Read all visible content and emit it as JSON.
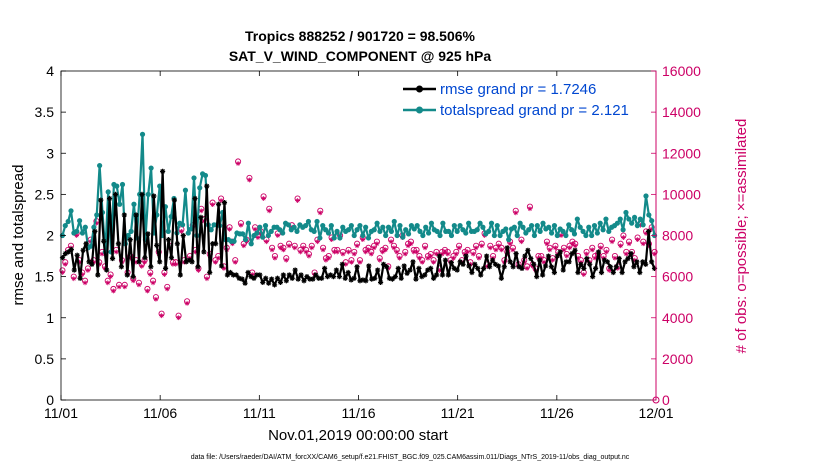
{
  "chart_data": {
    "type": "line",
    "title": "Tropics 888252 / 901720 = 98.506%",
    "subtitle": "SAT_V_WIND_COMPONENT @ 925 hPa",
    "xlabel": "Nov.01,2019 00:00:00 start",
    "ylabel_left": "rmse and totalspread",
    "ylabel_right": "# of obs: o=possible; ×=assimilated",
    "footer": "data file: /Users/raeder/DAI/ATM_forcXX/CAM6_setup/f.e21.FHIST_BGC.f09_025.CAM6assim.011/Diags_NTrS_2019-11/obs_diag_output.nc",
    "x_tick_labels": [
      "11/01",
      "11/06",
      "11/11",
      "11/16",
      "11/21",
      "11/26",
      "12/01"
    ],
    "x_tick_days": [
      0,
      5,
      10,
      15,
      20,
      25,
      30
    ],
    "xlim_days": [
      0,
      30
    ],
    "ylim_left": [
      0,
      4
    ],
    "y_ticks_left": [
      "0",
      "0.5",
      "1",
      "1.5",
      "2",
      "2.5",
      "3",
      "3.5",
      "4"
    ],
    "ylim_right": [
      0,
      16000
    ],
    "y_ticks_right": [
      "0",
      "2000",
      "4000",
      "6000",
      "8000",
      "10000",
      "12000",
      "14000",
      "16000"
    ],
    "legend": {
      "placement": "top-right",
      "entries": [
        "rmse grand pr = 1.7246",
        "totalspread grand pr = 2.121"
      ]
    },
    "colors": {
      "rmse": "#000000",
      "spread": "#138a8a",
      "obs": "#cc0066",
      "legend_text": "#0047d1",
      "right_axis": "#cc0066"
    },
    "series": [
      {
        "name": "rmse",
        "axis": "left",
        "values": [
          1.73,
          1.78,
          1.8,
          1.83,
          1.58,
          1.76,
          1.48,
          1.82,
          1.9,
          1.68,
          1.65,
          2.05,
          1.52,
          2.43,
          1.93,
          1.58,
          2.45,
          1.72,
          2.5,
          1.9,
          1.62,
          2.25,
          1.52,
          1.95,
          1.5,
          2.25,
          1.68,
          2.5,
          1.73,
          2.02,
          1.62,
          2.48,
          1.88,
          1.68,
          2.78,
          1.6,
          1.95,
          1.73,
          2.43,
          1.9,
          1.52,
          2.0,
          1.68,
          1.7,
          1.68,
          2.45,
          1.62,
          2.22,
          1.8,
          2.6,
          1.55,
          1.9,
          1.9,
          2.38,
          1.63,
          2.4,
          1.52,
          1.55,
          1.52,
          1.52,
          1.48,
          1.47,
          1.42,
          1.55,
          1.5,
          1.48,
          1.52,
          1.52,
          1.43,
          1.48,
          1.42,
          1.47,
          1.4,
          1.48,
          1.43,
          1.52,
          1.45,
          1.52,
          1.48,
          1.58,
          1.47,
          1.52,
          1.45,
          1.5,
          1.47,
          1.47,
          1.52,
          1.48,
          1.48,
          1.6,
          1.5,
          1.52,
          1.5,
          1.58,
          1.5,
          1.65,
          1.48,
          1.55,
          1.46,
          1.48,
          1.62,
          1.45,
          1.46,
          1.45,
          1.63,
          1.47,
          1.48,
          1.58,
          1.43,
          1.65,
          1.62,
          1.48,
          1.47,
          1.5,
          1.6,
          1.48,
          1.63,
          1.54,
          1.58,
          1.68,
          1.47,
          1.6,
          1.5,
          1.52,
          1.58,
          1.6,
          1.48,
          1.52,
          1.75,
          1.52,
          1.7,
          1.52,
          1.67,
          1.6,
          1.58,
          1.68,
          1.65,
          1.75,
          1.63,
          1.55,
          1.65,
          1.6,
          1.52,
          1.6,
          1.75,
          1.62,
          1.7,
          1.65,
          1.63,
          1.48,
          1.62,
          1.85,
          1.68,
          1.62,
          1.78,
          1.62,
          1.6,
          1.75,
          1.82,
          1.72,
          1.65,
          1.5,
          1.7,
          1.52,
          1.63,
          1.75,
          1.62,
          1.55,
          1.75,
          1.8,
          1.58,
          1.68,
          1.68,
          1.78,
          1.82,
          1.55,
          1.65,
          1.6,
          1.72,
          1.65,
          1.5,
          1.6,
          1.8,
          1.55,
          1.7,
          1.68,
          1.62,
          1.55,
          1.62,
          1.72,
          1.55,
          1.68,
          1.72,
          1.78,
          1.62,
          1.68,
          1.55,
          1.68,
          1.65,
          2.05,
          1.68,
          1.6
        ]
      },
      {
        "name": "totalspread",
        "axis": "left",
        "values": [
          2.0,
          2.12,
          2.17,
          2.3,
          2.03,
          2.05,
          2.18,
          2.03,
          2.1,
          1.85,
          1.87,
          2.1,
          2.25,
          2.85,
          2.28,
          1.8,
          2.53,
          1.8,
          2.62,
          2.6,
          2.38,
          2.62,
          1.9,
          2.0,
          2.05,
          2.38,
          1.97,
          2.5,
          3.23,
          1.95,
          2.5,
          2.82,
          2.03,
          2.25,
          2.6,
          2.0,
          2.35,
          2.05,
          2.23,
          2.45,
          2.03,
          2.15,
          2.13,
          2.55,
          2.03,
          2.08,
          2.7,
          2.0,
          2.58,
          2.75,
          2.73,
          2.13,
          2.07,
          2.13,
          2.13,
          2.12,
          2.28,
          1.95,
          1.95,
          1.93,
          1.93,
          2.03,
          2.02,
          2.02,
          1.95,
          2.15,
          1.9,
          2.0,
          2.03,
          2.1,
          1.98,
          2.12,
          2.0,
          2.05,
          2.1,
          2.1,
          2.07,
          2.03,
          2.15,
          2.13,
          2.07,
          2.1,
          2.05,
          2.13,
          2.1,
          2.12,
          2.17,
          2.07,
          2.05,
          2.17,
          1.97,
          2.12,
          2.07,
          2.03,
          2.12,
          1.97,
          2.05,
          1.97,
          2.1,
          2.05,
          2.07,
          2.12,
          2.0,
          2.07,
          2.12,
          2.0,
          2.1,
          1.97,
          2.05,
          2.07,
          2.15,
          2.05,
          2.1,
          2.0,
          2.1,
          2.05,
          2.17,
          2.0,
          2.12,
          1.98,
          2.07,
          2.02,
          2.12,
          2.08,
          2.12,
          2.05,
          2.0,
          2.1,
          2.03,
          2.15,
          2.07,
          2.05,
          2.0,
          2.15,
          2.05,
          2.05,
          2.0,
          2.12,
          2.05,
          2.12,
          2.07,
          2.03,
          2.15,
          2.05,
          2.05,
          2.07,
          2.15,
          2.1,
          2.02,
          2.05,
          2.15,
          2.0,
          2.12,
          2.0,
          2.05,
          2.08,
          1.95,
          2.08,
          2.1,
          2.0,
          2.15,
          2.1,
          2.03,
          2.07,
          2.12,
          2.0,
          2.12,
          2.05,
          2.15,
          2.08,
          2.1,
          2.03,
          2.12,
          2.0,
          2.08,
          2.05,
          2.0,
          2.13,
          2.07,
          2.02,
          2.2,
          2.1,
          2.05,
          2.0,
          2.1,
          2.0,
          2.12,
          2.03,
          2.15,
          2.07,
          2.2,
          2.05,
          2.1,
          2.12,
          2.15,
          2.2,
          2.07,
          2.28,
          2.2,
          2.15,
          2.22,
          2.12,
          2.2,
          2.13,
          2.48,
          2.25,
          2.18,
          2.0
        ]
      },
      {
        "name": "obs_possible",
        "axis": "right",
        "values": [
          6300,
          6700,
          7300,
          7500,
          6000,
          8100,
          6800,
          6200,
          5800,
          6400,
          7800,
          6800,
          8700,
          6700,
          7200,
          6500,
          5800,
          6100,
          5400,
          7300,
          5600,
          6800,
          5600,
          6200,
          7000,
          5900,
          6800,
          5700,
          6600,
          6800,
          5400,
          6200,
          5800,
          5000,
          7200,
          4200,
          6200,
          5500,
          7500,
          6700,
          6700,
          4100,
          8300,
          6800,
          4800,
          7000,
          8500,
          7300,
          6400,
          9300,
          8800,
          6000,
          7100,
          9600,
          6800,
          7000,
          9800,
          6500,
          7400,
          8400,
          7700,
          6800,
          11600,
          8600,
          7600,
          7800,
          10800,
          6200,
          8400,
          8000,
          8200,
          9900,
          7800,
          9300,
          7400,
          7000,
          8100,
          7500,
          7400,
          6900,
          7600,
          8500,
          7500,
          9800,
          7300,
          7500,
          7300,
          7100,
          7500,
          6200,
          7800,
          9200,
          7400,
          6900,
          7000,
          7900,
          7300,
          7300,
          8000,
          7200,
          6700,
          7300,
          6800,
          7200,
          7600,
          6800,
          7900,
          7300,
          7400,
          7200,
          7500,
          7700,
          6900,
          7300,
          7400,
          6500,
          7800,
          7500,
          7300,
          7000,
          8000,
          7200,
          7600,
          7700,
          7300,
          7300,
          7000,
          6800,
          7500,
          7000,
          7100,
          6800,
          7200,
          6400,
          7200,
          7300,
          7200,
          6800,
          7000,
          7200,
          7500,
          6800,
          7200,
          7300,
          6700,
          7200,
          7500,
          7000,
          7600,
          8100,
          6600,
          7500,
          7000,
          7400,
          7600,
          7400,
          6800,
          7200,
          7700,
          7400,
          9200,
          6600,
          7800,
          6800,
          6500,
          9400,
          6600,
          6400,
          7000,
          7000,
          6800,
          7700,
          7400,
          6900,
          7500,
          7200,
          8100,
          7400,
          7100,
          7500,
          7700,
          7600,
          7000,
          6800,
          6200,
          7200,
          6800,
          7400,
          7000,
          7100,
          7500,
          7000,
          7300,
          6400,
          7800,
          7000,
          6500,
          7600,
          8000,
          7200,
          7700,
          7200,
          6900,
          7900,
          8600,
          7700,
          8200,
          7600,
          8400,
          7200
        ]
      },
      {
        "name": "obs_assimilated",
        "axis": "right",
        "values": [
          6200,
          6600,
          7200,
          7400,
          5900,
          8000,
          6700,
          6100,
          5700,
          6300,
          7700,
          6700,
          8600,
          6600,
          7100,
          6400,
          5700,
          6000,
          5300,
          7200,
          5500,
          6700,
          5500,
          6100,
          6900,
          5800,
          6700,
          5600,
          6500,
          6700,
          5300,
          6100,
          5700,
          4900,
          7100,
          4100,
          6100,
          5400,
          7400,
          6600,
          6600,
          4000,
          8200,
          6700,
          4700,
          6900,
          8400,
          7200,
          6300,
          9200,
          8700,
          5900,
          7000,
          9500,
          6700,
          6900,
          9700,
          6400,
          7300,
          8300,
          7600,
          6700,
          11500,
          8500,
          7500,
          7700,
          10700,
          6100,
          8300,
          7900,
          8100,
          9800,
          7700,
          9200,
          7300,
          6900,
          8000,
          7400,
          7300,
          6800,
          7500,
          8400,
          7400,
          9700,
          7200,
          7400,
          7200,
          7000,
          7400,
          6100,
          7700,
          9100,
          7300,
          6800,
          6900,
          7800,
          7200,
          7200,
          7900,
          7100,
          6600,
          7200,
          6700,
          7100,
          7500,
          6700,
          7800,
          7200,
          7300,
          7100,
          7400,
          7600,
          6800,
          7200,
          7300,
          6400,
          7700,
          7400,
          7200,
          6900,
          7900,
          7100,
          7500,
          7600,
          7200,
          7200,
          6900,
          6700,
          7400,
          6900,
          7000,
          6700,
          7100,
          6300,
          7100,
          7200,
          7100,
          6700,
          6900,
          7100,
          7400,
          6700,
          7100,
          7200,
          6600,
          7100,
          7400,
          6900,
          7500,
          8000,
          6500,
          7400,
          6900,
          7300,
          7500,
          7300,
          6700,
          7100,
          7600,
          7300,
          9100,
          6500,
          7700,
          6700,
          6400,
          9300,
          6500,
          6300,
          6900,
          6900,
          6700,
          7600,
          7300,
          6800,
          7400,
          7100,
          8000,
          7300,
          7000,
          7400,
          7600,
          7500,
          6900,
          6700,
          6100,
          7100,
          6700,
          7300,
          6900,
          7000,
          7400,
          6900,
          7200,
          6300,
          7700,
          6900,
          6400,
          7500,
          7900,
          7100,
          7600,
          7100,
          6800,
          7800,
          8500,
          7600,
          8100,
          7500,
          8300,
          7100
        ]
      }
    ],
    "end_marker": {
      "day": 30,
      "value_right": 0
    }
  }
}
